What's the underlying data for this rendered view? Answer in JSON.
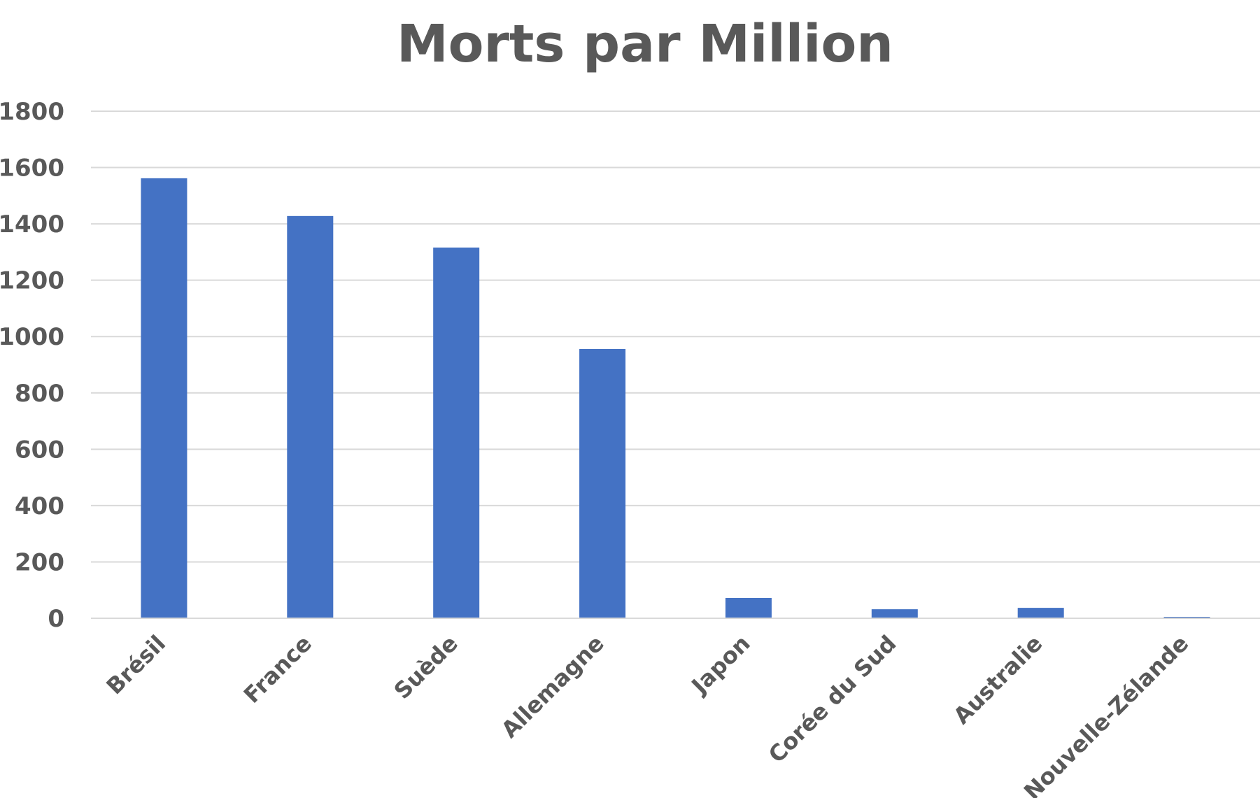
{
  "chart_data": {
    "type": "bar",
    "title": "Morts par Million",
    "xlabel": "",
    "ylabel": "",
    "categories": [
      "Brésil",
      "France",
      "Suède",
      "Allemagne",
      "Japon",
      "Corée du Sud",
      "Australie",
      "Nouvelle-Zélande"
    ],
    "values": [
      1562,
      1428,
      1316,
      956,
      72,
      32,
      37,
      5
    ],
    "ylim": [
      0,
      1800
    ],
    "yticks": [
      "0",
      "200",
      "400",
      "600",
      "800",
      "1000",
      "1200",
      "1400",
      "1600",
      "1800"
    ],
    "grid": true,
    "legend": "none",
    "colors": {
      "bar": "#4472C4",
      "grid": "#D9D9D9",
      "text": "#595959"
    }
  }
}
